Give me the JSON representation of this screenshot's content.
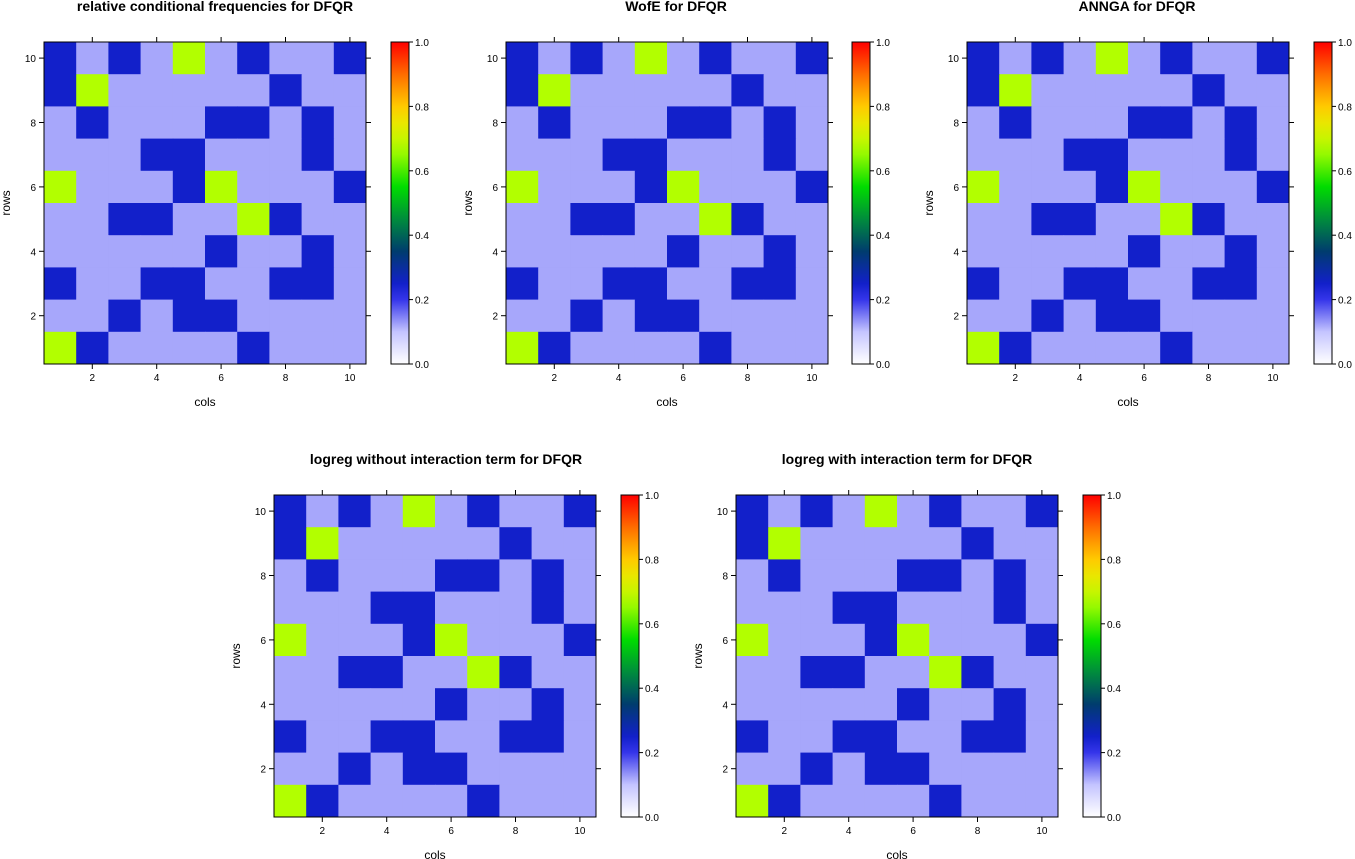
{
  "chart_data": [
    {
      "type": "heatmap",
      "title": "relative conditional frequencies for DFQR",
      "xlabel": "cols",
      "ylabel": "rows",
      "x_ticks": [
        2,
        4,
        6,
        8,
        10
      ],
      "y_ticks": [
        2,
        4,
        6,
        8,
        10
      ],
      "colorbar_ticks": [
        "0.0",
        "0.2",
        "0.4",
        "0.6",
        "0.8",
        "1.0"
      ],
      "colorbar_range": [
        0,
        1
      ],
      "rows": [
        10,
        9,
        8,
        7,
        6,
        5,
        4,
        3,
        2,
        1
      ],
      "cols": [
        1,
        2,
        3,
        4,
        5,
        6,
        7,
        8,
        9,
        10
      ],
      "values": [
        [
          0.25,
          0.12,
          0.25,
          0.12,
          0.67,
          0.12,
          0.25,
          0.12,
          0.12,
          0.25
        ],
        [
          0.25,
          0.67,
          0.12,
          0.12,
          0.12,
          0.12,
          0.12,
          0.25,
          0.12,
          0.12
        ],
        [
          0.12,
          0.25,
          0.12,
          0.12,
          0.12,
          0.25,
          0.25,
          0.12,
          0.25,
          0.12
        ],
        [
          0.12,
          0.12,
          0.12,
          0.25,
          0.25,
          0.12,
          0.12,
          0.12,
          0.25,
          0.12
        ],
        [
          0.67,
          0.12,
          0.12,
          0.12,
          0.25,
          0.67,
          0.12,
          0.12,
          0.12,
          0.25
        ],
        [
          0.12,
          0.12,
          0.25,
          0.25,
          0.12,
          0.12,
          0.67,
          0.25,
          0.12,
          0.12
        ],
        [
          0.12,
          0.12,
          0.12,
          0.12,
          0.12,
          0.25,
          0.12,
          0.12,
          0.25,
          0.12
        ],
        [
          0.25,
          0.12,
          0.12,
          0.25,
          0.25,
          0.12,
          0.12,
          0.25,
          0.25,
          0.12
        ],
        [
          0.12,
          0.12,
          0.25,
          0.12,
          0.25,
          0.25,
          0.12,
          0.12,
          0.12,
          0.12
        ],
        [
          0.67,
          0.25,
          0.12,
          0.12,
          0.12,
          0.12,
          0.25,
          0.12,
          0.12,
          0.12
        ]
      ]
    },
    {
      "type": "heatmap",
      "title": "WofE for DFQR",
      "xlabel": "cols",
      "ylabel": "rows",
      "x_ticks": [
        2,
        4,
        6,
        8,
        10
      ],
      "y_ticks": [
        2,
        4,
        6,
        8,
        10
      ],
      "colorbar_ticks": [
        "0.0",
        "0.2",
        "0.4",
        "0.6",
        "0.8",
        "1.0"
      ],
      "colorbar_range": [
        0,
        1
      ],
      "rows": [
        10,
        9,
        8,
        7,
        6,
        5,
        4,
        3,
        2,
        1
      ],
      "cols": [
        1,
        2,
        3,
        4,
        5,
        6,
        7,
        8,
        9,
        10
      ],
      "values": [
        [
          0.25,
          0.12,
          0.25,
          0.12,
          0.67,
          0.12,
          0.25,
          0.12,
          0.12,
          0.25
        ],
        [
          0.25,
          0.67,
          0.12,
          0.12,
          0.12,
          0.12,
          0.12,
          0.25,
          0.12,
          0.12
        ],
        [
          0.12,
          0.25,
          0.12,
          0.12,
          0.12,
          0.25,
          0.25,
          0.12,
          0.25,
          0.12
        ],
        [
          0.12,
          0.12,
          0.12,
          0.25,
          0.25,
          0.12,
          0.12,
          0.12,
          0.25,
          0.12
        ],
        [
          0.67,
          0.12,
          0.12,
          0.12,
          0.25,
          0.67,
          0.12,
          0.12,
          0.12,
          0.25
        ],
        [
          0.12,
          0.12,
          0.25,
          0.25,
          0.12,
          0.12,
          0.67,
          0.25,
          0.12,
          0.12
        ],
        [
          0.12,
          0.12,
          0.12,
          0.12,
          0.12,
          0.25,
          0.12,
          0.12,
          0.25,
          0.12
        ],
        [
          0.25,
          0.12,
          0.12,
          0.25,
          0.25,
          0.12,
          0.12,
          0.25,
          0.25,
          0.12
        ],
        [
          0.12,
          0.12,
          0.25,
          0.12,
          0.25,
          0.25,
          0.12,
          0.12,
          0.12,
          0.12
        ],
        [
          0.67,
          0.25,
          0.12,
          0.12,
          0.12,
          0.12,
          0.25,
          0.12,
          0.12,
          0.12
        ]
      ]
    },
    {
      "type": "heatmap",
      "title": "ANNGA for DFQR",
      "xlabel": "cols",
      "ylabel": "rows",
      "x_ticks": [
        2,
        4,
        6,
        8,
        10
      ],
      "y_ticks": [
        2,
        4,
        6,
        8,
        10
      ],
      "colorbar_ticks": [
        "0.0",
        "0.2",
        "0.4",
        "0.6",
        "0.8",
        "1.0"
      ],
      "colorbar_range": [
        0,
        1
      ],
      "rows": [
        10,
        9,
        8,
        7,
        6,
        5,
        4,
        3,
        2,
        1
      ],
      "cols": [
        1,
        2,
        3,
        4,
        5,
        6,
        7,
        8,
        9,
        10
      ],
      "values": [
        [
          0.25,
          0.12,
          0.25,
          0.12,
          0.67,
          0.12,
          0.25,
          0.12,
          0.12,
          0.25
        ],
        [
          0.25,
          0.67,
          0.12,
          0.12,
          0.12,
          0.12,
          0.12,
          0.25,
          0.12,
          0.12
        ],
        [
          0.12,
          0.25,
          0.12,
          0.12,
          0.12,
          0.25,
          0.25,
          0.12,
          0.25,
          0.12
        ],
        [
          0.12,
          0.12,
          0.12,
          0.25,
          0.25,
          0.12,
          0.12,
          0.12,
          0.25,
          0.12
        ],
        [
          0.67,
          0.12,
          0.12,
          0.12,
          0.25,
          0.67,
          0.12,
          0.12,
          0.12,
          0.25
        ],
        [
          0.12,
          0.12,
          0.25,
          0.25,
          0.12,
          0.12,
          0.67,
          0.25,
          0.12,
          0.12
        ],
        [
          0.12,
          0.12,
          0.12,
          0.12,
          0.12,
          0.25,
          0.12,
          0.12,
          0.25,
          0.12
        ],
        [
          0.25,
          0.12,
          0.12,
          0.25,
          0.25,
          0.12,
          0.12,
          0.25,
          0.25,
          0.12
        ],
        [
          0.12,
          0.12,
          0.25,
          0.12,
          0.25,
          0.25,
          0.12,
          0.12,
          0.12,
          0.12
        ],
        [
          0.67,
          0.25,
          0.12,
          0.12,
          0.12,
          0.12,
          0.25,
          0.12,
          0.12,
          0.12
        ]
      ]
    },
    {
      "type": "heatmap",
      "title": "logreg without interaction term for DFQR",
      "xlabel": "cols",
      "ylabel": "rows",
      "x_ticks": [
        2,
        4,
        6,
        8,
        10
      ],
      "y_ticks": [
        2,
        4,
        6,
        8,
        10
      ],
      "colorbar_ticks": [
        "0.0",
        "0.2",
        "0.4",
        "0.6",
        "0.8",
        "1.0"
      ],
      "colorbar_range": [
        0,
        1
      ],
      "rows": [
        10,
        9,
        8,
        7,
        6,
        5,
        4,
        3,
        2,
        1
      ],
      "cols": [
        1,
        2,
        3,
        4,
        5,
        6,
        7,
        8,
        9,
        10
      ],
      "values": [
        [
          0.25,
          0.12,
          0.25,
          0.12,
          0.67,
          0.12,
          0.25,
          0.12,
          0.12,
          0.25
        ],
        [
          0.25,
          0.67,
          0.12,
          0.12,
          0.12,
          0.12,
          0.12,
          0.25,
          0.12,
          0.12
        ],
        [
          0.12,
          0.25,
          0.12,
          0.12,
          0.12,
          0.25,
          0.25,
          0.12,
          0.25,
          0.12
        ],
        [
          0.12,
          0.12,
          0.12,
          0.25,
          0.25,
          0.12,
          0.12,
          0.12,
          0.25,
          0.12
        ],
        [
          0.67,
          0.12,
          0.12,
          0.12,
          0.25,
          0.67,
          0.12,
          0.12,
          0.12,
          0.25
        ],
        [
          0.12,
          0.12,
          0.25,
          0.25,
          0.12,
          0.12,
          0.67,
          0.25,
          0.12,
          0.12
        ],
        [
          0.12,
          0.12,
          0.12,
          0.12,
          0.12,
          0.25,
          0.12,
          0.12,
          0.25,
          0.12
        ],
        [
          0.25,
          0.12,
          0.12,
          0.25,
          0.25,
          0.12,
          0.12,
          0.25,
          0.25,
          0.12
        ],
        [
          0.12,
          0.12,
          0.25,
          0.12,
          0.25,
          0.25,
          0.12,
          0.12,
          0.12,
          0.12
        ],
        [
          0.67,
          0.25,
          0.12,
          0.12,
          0.12,
          0.12,
          0.25,
          0.12,
          0.12,
          0.12
        ]
      ]
    },
    {
      "type": "heatmap",
      "title": "logreg with interaction term for DFQR",
      "xlabel": "cols",
      "ylabel": "rows",
      "x_ticks": [
        2,
        4,
        6,
        8,
        10
      ],
      "y_ticks": [
        2,
        4,
        6,
        8,
        10
      ],
      "colorbar_ticks": [
        "0.0",
        "0.2",
        "0.4",
        "0.6",
        "0.8",
        "1.0"
      ],
      "colorbar_range": [
        0,
        1
      ],
      "rows": [
        10,
        9,
        8,
        7,
        6,
        5,
        4,
        3,
        2,
        1
      ],
      "cols": [
        1,
        2,
        3,
        4,
        5,
        6,
        7,
        8,
        9,
        10
      ],
      "values": [
        [
          0.25,
          0.12,
          0.25,
          0.12,
          0.67,
          0.12,
          0.25,
          0.12,
          0.12,
          0.25
        ],
        [
          0.25,
          0.67,
          0.12,
          0.12,
          0.12,
          0.12,
          0.12,
          0.25,
          0.12,
          0.12
        ],
        [
          0.12,
          0.25,
          0.12,
          0.12,
          0.12,
          0.25,
          0.25,
          0.12,
          0.25,
          0.12
        ],
        [
          0.12,
          0.12,
          0.12,
          0.25,
          0.25,
          0.12,
          0.12,
          0.12,
          0.25,
          0.12
        ],
        [
          0.67,
          0.12,
          0.12,
          0.12,
          0.25,
          0.67,
          0.12,
          0.12,
          0.12,
          0.25
        ],
        [
          0.12,
          0.12,
          0.25,
          0.25,
          0.12,
          0.12,
          0.67,
          0.25,
          0.12,
          0.12
        ],
        [
          0.12,
          0.12,
          0.12,
          0.12,
          0.12,
          0.25,
          0.12,
          0.12,
          0.25,
          0.12
        ],
        [
          0.25,
          0.12,
          0.12,
          0.25,
          0.25,
          0.12,
          0.12,
          0.25,
          0.25,
          0.12
        ],
        [
          0.12,
          0.12,
          0.25,
          0.12,
          0.25,
          0.25,
          0.12,
          0.12,
          0.12,
          0.12
        ],
        [
          0.67,
          0.25,
          0.12,
          0.12,
          0.12,
          0.12,
          0.25,
          0.12,
          0.12,
          0.12
        ]
      ]
    }
  ],
  "colors": {
    "low_blue": "#c4c4ff",
    "mid_blue": "#1818e6",
    "yellow_green": "#b2ff00"
  }
}
